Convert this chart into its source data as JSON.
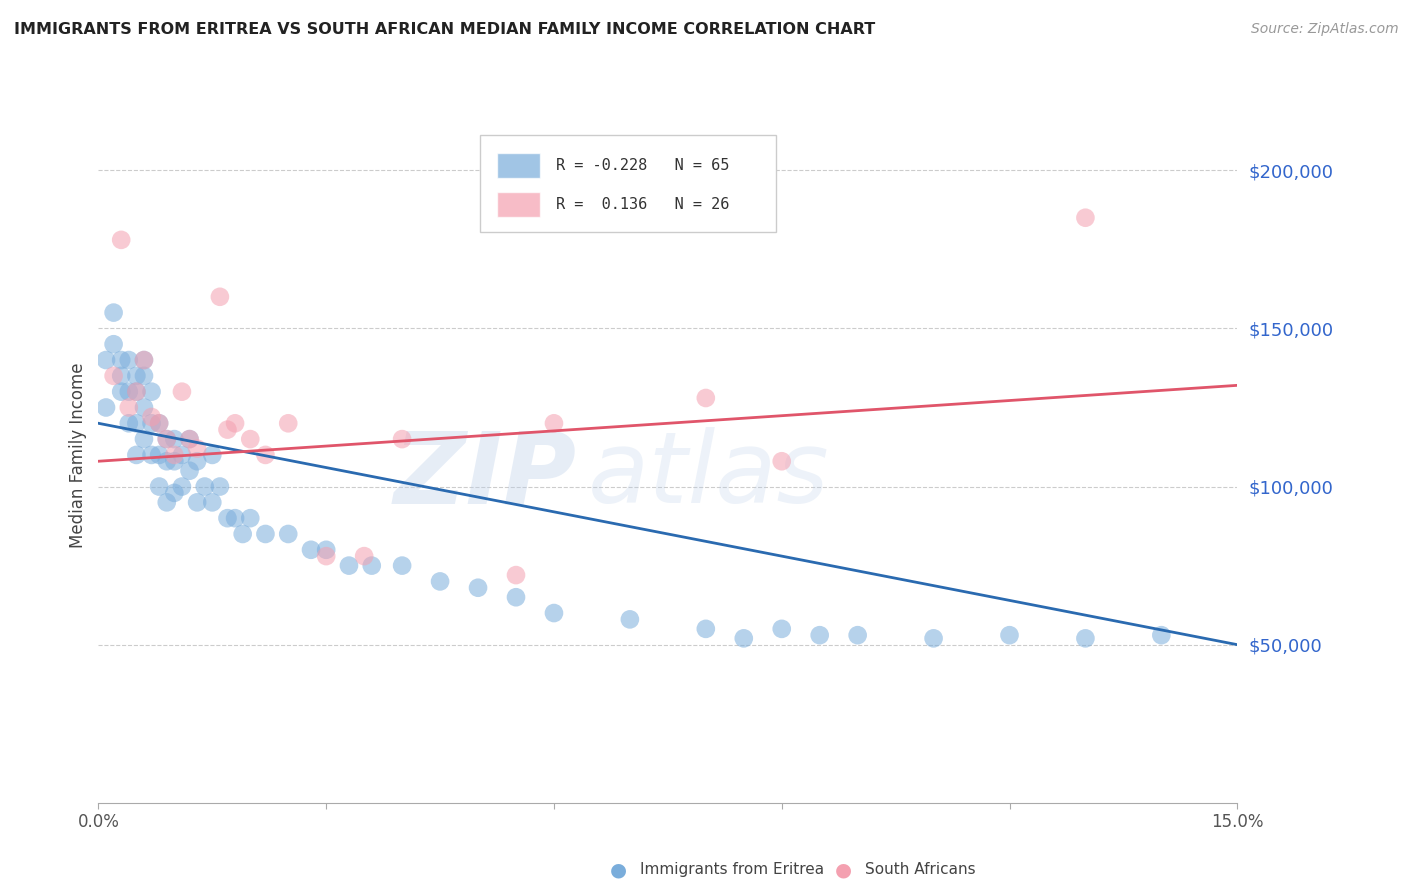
{
  "title": "IMMIGRANTS FROM ERITREA VS SOUTH AFRICAN MEDIAN FAMILY INCOME CORRELATION CHART",
  "source": "Source: ZipAtlas.com",
  "ylabel": "Median Family Income",
  "xlim": [
    0.0,
    0.15
  ],
  "ylim": [
    0,
    220000
  ],
  "xticks": [
    0.0,
    0.03,
    0.06,
    0.09,
    0.12,
    0.15
  ],
  "xticklabels": [
    "0.0%",
    "",
    "",
    "",
    "",
    "15.0%"
  ],
  "ytick_positions": [
    50000,
    100000,
    150000,
    200000
  ],
  "ytick_labels": [
    "$50,000",
    "$100,000",
    "$150,000",
    "$200,000"
  ],
  "blue_color": "#7aaddb",
  "pink_color": "#f4a0b0",
  "blue_line_color": "#2a6ab0",
  "pink_line_color": "#e0556a",
  "blue_R": -0.228,
  "blue_N": 65,
  "pink_R": 0.136,
  "pink_N": 26,
  "watermark_zip": "ZIP",
  "watermark_atlas": "atlas",
  "blue_line_x0": 0.0,
  "blue_line_y0": 120000,
  "blue_line_x1": 0.15,
  "blue_line_y1": 50000,
  "pink_line_x0": 0.0,
  "pink_line_y0": 108000,
  "pink_line_x1": 0.15,
  "pink_line_y1": 132000,
  "blue_x": [
    0.001,
    0.001,
    0.002,
    0.002,
    0.003,
    0.003,
    0.003,
    0.004,
    0.004,
    0.004,
    0.005,
    0.005,
    0.005,
    0.005,
    0.006,
    0.006,
    0.006,
    0.006,
    0.007,
    0.007,
    0.007,
    0.008,
    0.008,
    0.008,
    0.009,
    0.009,
    0.009,
    0.01,
    0.01,
    0.01,
    0.011,
    0.011,
    0.012,
    0.012,
    0.013,
    0.013,
    0.014,
    0.015,
    0.015,
    0.016,
    0.017,
    0.018,
    0.019,
    0.02,
    0.022,
    0.025,
    0.028,
    0.03,
    0.033,
    0.036,
    0.04,
    0.045,
    0.05,
    0.055,
    0.06,
    0.07,
    0.08,
    0.085,
    0.09,
    0.095,
    0.1,
    0.11,
    0.12,
    0.13,
    0.14
  ],
  "blue_y": [
    140000,
    125000,
    155000,
    145000,
    140000,
    135000,
    130000,
    140000,
    130000,
    120000,
    135000,
    130000,
    120000,
    110000,
    140000,
    135000,
    125000,
    115000,
    130000,
    120000,
    110000,
    120000,
    110000,
    100000,
    115000,
    108000,
    95000,
    115000,
    108000,
    98000,
    110000,
    100000,
    115000,
    105000,
    108000,
    95000,
    100000,
    110000,
    95000,
    100000,
    90000,
    90000,
    85000,
    90000,
    85000,
    85000,
    80000,
    80000,
    75000,
    75000,
    75000,
    70000,
    68000,
    65000,
    60000,
    58000,
    55000,
    52000,
    55000,
    53000,
    53000,
    52000,
    53000,
    52000,
    53000
  ],
  "pink_x": [
    0.002,
    0.003,
    0.004,
    0.005,
    0.006,
    0.007,
    0.008,
    0.009,
    0.01,
    0.011,
    0.012,
    0.013,
    0.016,
    0.017,
    0.018,
    0.02,
    0.022,
    0.025,
    0.03,
    0.035,
    0.04,
    0.055,
    0.06,
    0.08,
    0.09,
    0.13
  ],
  "pink_y": [
    135000,
    178000,
    125000,
    130000,
    140000,
    122000,
    120000,
    115000,
    110000,
    130000,
    115000,
    112000,
    160000,
    118000,
    120000,
    115000,
    110000,
    120000,
    78000,
    78000,
    115000,
    72000,
    120000,
    128000,
    108000,
    185000
  ]
}
